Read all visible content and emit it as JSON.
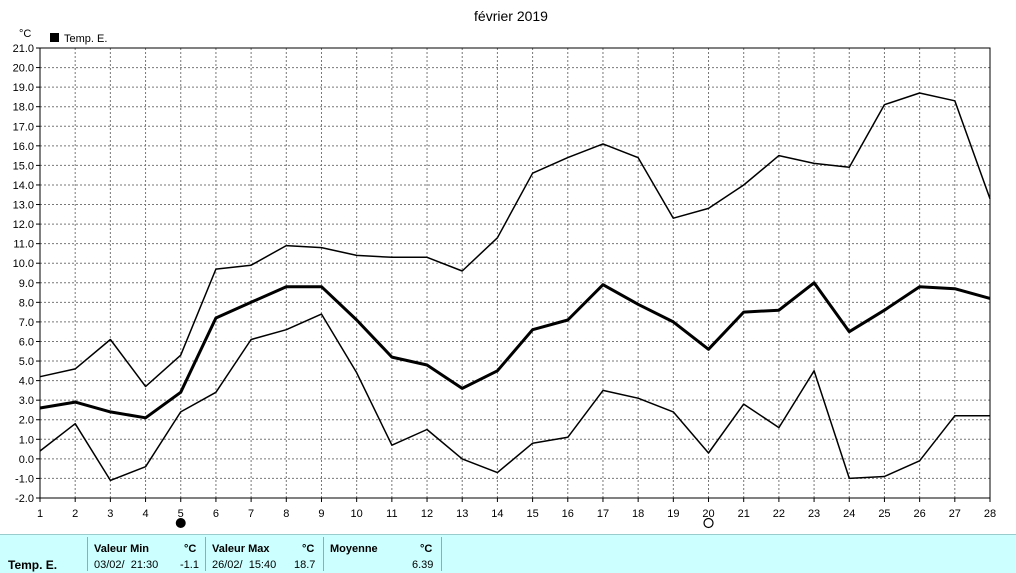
{
  "chart_data": {
    "type": "line",
    "title": "février 2019",
    "unit_label": "°C",
    "legend": {
      "label": "Temp. E.",
      "placement": "top-left"
    },
    "x_ticks": [
      "1",
      "2",
      "3",
      "4",
      "5",
      "6",
      "7",
      "8",
      "9",
      "10",
      "11",
      "12",
      "13",
      "14",
      "15",
      "16",
      "17",
      "18",
      "19",
      "20",
      "21",
      "22",
      "23",
      "24",
      "25",
      "26",
      "27",
      "28"
    ],
    "xlim": [
      1,
      28
    ],
    "y_ticks": [
      "-2.0",
      "-1.0",
      "0.0",
      "1.0",
      "2.0",
      "3.0",
      "4.0",
      "5.0",
      "6.0",
      "7.0",
      "8.0",
      "9.0",
      "10.0",
      "11.0",
      "12.0",
      "13.0",
      "14.0",
      "15.0",
      "16.0",
      "17.0",
      "18.0",
      "19.0",
      "20.0",
      "21.0"
    ],
    "ylim": [
      -2,
      21
    ],
    "grid": true,
    "moon_phases": [
      {
        "day": 5,
        "phase": "new-moon"
      },
      {
        "day": 20,
        "phase": "full-moon"
      }
    ],
    "x": [
      1,
      2,
      3,
      4,
      5,
      6,
      7,
      8,
      9,
      10,
      11,
      12,
      13,
      14,
      15,
      16,
      17,
      18,
      19,
      20,
      21,
      22,
      23,
      24,
      25,
      26,
      27,
      28
    ],
    "series": [
      {
        "role": "max",
        "values": [
          4.2,
          4.6,
          6.1,
          3.7,
          5.3,
          9.7,
          9.9,
          10.9,
          10.8,
          10.4,
          10.3,
          10.3,
          9.6,
          11.3,
          14.6,
          15.4,
          16.1,
          15.4,
          12.3,
          12.8,
          14.0,
          15.5,
          15.1,
          14.9,
          18.1,
          18.7,
          18.3,
          13.3
        ]
      },
      {
        "role": "mean",
        "values": [
          2.6,
          2.9,
          2.4,
          2.1,
          3.4,
          7.2,
          8.0,
          8.8,
          8.8,
          7.1,
          5.2,
          4.8,
          3.6,
          4.5,
          6.6,
          7.1,
          8.9,
          7.9,
          7.0,
          5.6,
          7.5,
          7.6,
          9.0,
          6.5,
          7.6,
          8.8,
          8.7,
          8.2
        ]
      },
      {
        "role": "min",
        "values": [
          0.4,
          1.8,
          -1.1,
          -0.4,
          2.4,
          3.4,
          6.1,
          6.6,
          7.4,
          4.4,
          0.7,
          1.5,
          0.0,
          -0.7,
          0.8,
          1.1,
          3.5,
          3.1,
          2.4,
          0.3,
          2.8,
          1.6,
          4.5,
          -1.0,
          -0.9,
          -0.1,
          2.2,
          2.2
        ]
      }
    ]
  },
  "footer": {
    "series_label": "Temp. E.",
    "min": {
      "header": "Valeur Min",
      "unit": "°C",
      "datetime": "03/02/  21:30",
      "value": "-1.1"
    },
    "max": {
      "header": "Valeur Max",
      "unit": "°C",
      "datetime": "26/02/  15:40",
      "value": "18.7"
    },
    "mean": {
      "header": "Moyenne",
      "unit": "°C",
      "value": "6.39"
    },
    "colors": {
      "background": "#ccffff"
    }
  }
}
